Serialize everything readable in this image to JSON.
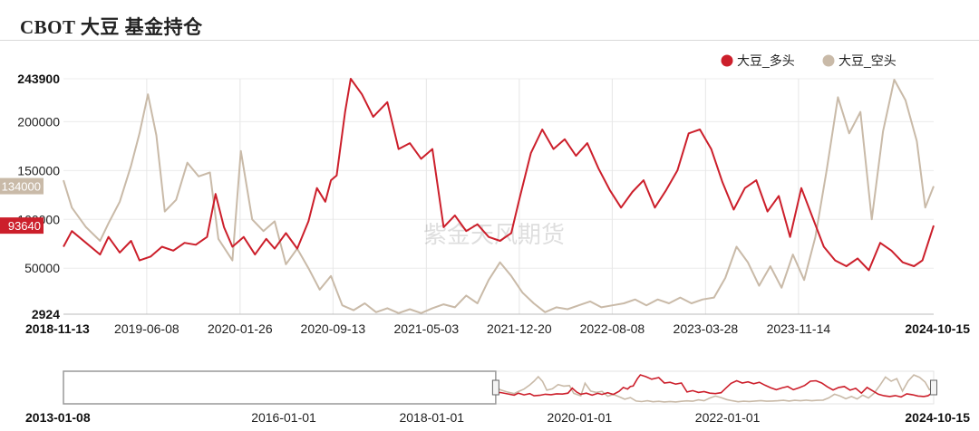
{
  "title": "CBOT 大豆 基金持仓",
  "watermark": "紫金天风期货",
  "chart_data": {
    "type": "line",
    "xlabel": "",
    "ylabel": "",
    "ylim": [
      2924,
      243900
    ],
    "y_ticks": [
      "243900",
      "200000",
      "150000",
      "100000",
      "50000",
      "2924"
    ],
    "x_range": [
      "2018-11-13",
      "2024-10-15"
    ],
    "x_ticks": [
      "2018-11-13",
      "2019-06-08",
      "2020-01-26",
      "2020-09-13",
      "2021-05-03",
      "2021-12-20",
      "2022-08-08",
      "2023-03-28",
      "2023-11-14",
      "2024-10-15"
    ],
    "grid": "vertical",
    "legend_position": "top-right",
    "series": [
      {
        "name": "大豆_多头",
        "color": "#cc1f2b",
        "last_value_label": "93640",
        "points": [
          [
            "2018-11-13",
            72000
          ],
          [
            "2018-12-04",
            88000
          ],
          [
            "2019-01-08",
            76000
          ],
          [
            "2019-02-12",
            64000
          ],
          [
            "2019-03-05",
            82000
          ],
          [
            "2019-04-02",
            66000
          ],
          [
            "2019-04-30",
            78000
          ],
          [
            "2019-05-21",
            58000
          ],
          [
            "2019-06-18",
            62000
          ],
          [
            "2019-07-16",
            72000
          ],
          [
            "2019-08-13",
            68000
          ],
          [
            "2019-09-10",
            76000
          ],
          [
            "2019-10-08",
            74000
          ],
          [
            "2019-11-05",
            82000
          ],
          [
            "2019-11-26",
            126000
          ],
          [
            "2019-12-17",
            92000
          ],
          [
            "2020-01-07",
            72000
          ],
          [
            "2020-02-04",
            82000
          ],
          [
            "2020-03-03",
            64000
          ],
          [
            "2020-03-31",
            80000
          ],
          [
            "2020-04-21",
            70000
          ],
          [
            "2020-05-19",
            86000
          ],
          [
            "2020-06-16",
            70000
          ],
          [
            "2020-07-14",
            98000
          ],
          [
            "2020-08-04",
            132000
          ],
          [
            "2020-08-25",
            118000
          ],
          [
            "2020-09-08",
            140000
          ],
          [
            "2020-09-22",
            145000
          ],
          [
            "2020-10-13",
            210000
          ],
          [
            "2020-10-27",
            243900
          ],
          [
            "2020-11-24",
            228000
          ],
          [
            "2020-12-22",
            205000
          ],
          [
            "2021-01-26",
            220000
          ],
          [
            "2021-02-23",
            172000
          ],
          [
            "2021-03-23",
            178000
          ],
          [
            "2021-04-20",
            162000
          ],
          [
            "2021-05-18",
            172000
          ],
          [
            "2021-06-15",
            92000
          ],
          [
            "2021-07-13",
            104000
          ],
          [
            "2021-08-10",
            88000
          ],
          [
            "2021-09-07",
            95000
          ],
          [
            "2021-10-05",
            82000
          ],
          [
            "2021-11-02",
            78000
          ],
          [
            "2021-11-30",
            86000
          ],
          [
            "2021-12-21",
            122000
          ],
          [
            "2022-01-18",
            168000
          ],
          [
            "2022-02-15",
            192000
          ],
          [
            "2022-03-15",
            172000
          ],
          [
            "2022-04-12",
            182000
          ],
          [
            "2022-05-10",
            165000
          ],
          [
            "2022-06-07",
            178000
          ],
          [
            "2022-07-05",
            152000
          ],
          [
            "2022-08-02",
            130000
          ],
          [
            "2022-08-30",
            112000
          ],
          [
            "2022-09-27",
            128000
          ],
          [
            "2022-10-25",
            140000
          ],
          [
            "2022-11-22",
            112000
          ],
          [
            "2022-12-20",
            130000
          ],
          [
            "2023-01-17",
            150000
          ],
          [
            "2023-02-14",
            188000
          ],
          [
            "2023-03-14",
            192000
          ],
          [
            "2023-04-11",
            172000
          ],
          [
            "2023-05-09",
            138000
          ],
          [
            "2023-06-06",
            110000
          ],
          [
            "2023-07-04",
            132000
          ],
          [
            "2023-08-01",
            140000
          ],
          [
            "2023-08-29",
            108000
          ],
          [
            "2023-09-26",
            124000
          ],
          [
            "2023-10-24",
            82000
          ],
          [
            "2023-11-21",
            132000
          ],
          [
            "2023-12-19",
            102000
          ],
          [
            "2024-01-16",
            72000
          ],
          [
            "2024-02-13",
            58000
          ],
          [
            "2024-03-12",
            52000
          ],
          [
            "2024-04-09",
            60000
          ],
          [
            "2024-05-07",
            48000
          ],
          [
            "2024-06-04",
            76000
          ],
          [
            "2024-07-02",
            68000
          ],
          [
            "2024-07-30",
            56000
          ],
          [
            "2024-08-27",
            52000
          ],
          [
            "2024-09-17",
            58000
          ],
          [
            "2024-10-15",
            93640
          ]
        ]
      },
      {
        "name": "大豆_空头",
        "color": "#c9baa8",
        "last_value_label": "134000",
        "points": [
          [
            "2018-11-13",
            140000
          ],
          [
            "2018-12-04",
            112000
          ],
          [
            "2019-01-08",
            92000
          ],
          [
            "2019-02-12",
            78000
          ],
          [
            "2019-03-05",
            96000
          ],
          [
            "2019-04-02",
            118000
          ],
          [
            "2019-04-30",
            155000
          ],
          [
            "2019-05-21",
            188000
          ],
          [
            "2019-06-11",
            228000
          ],
          [
            "2019-07-02",
            186000
          ],
          [
            "2019-07-23",
            108000
          ],
          [
            "2019-08-20",
            120000
          ],
          [
            "2019-09-17",
            158000
          ],
          [
            "2019-10-15",
            144000
          ],
          [
            "2019-11-12",
            148000
          ],
          [
            "2019-12-03",
            80000
          ],
          [
            "2020-01-07",
            58000
          ],
          [
            "2020-01-28",
            170000
          ],
          [
            "2020-02-25",
            100000
          ],
          [
            "2020-03-24",
            88000
          ],
          [
            "2020-04-21",
            98000
          ],
          [
            "2020-05-19",
            54000
          ],
          [
            "2020-06-16",
            70000
          ],
          [
            "2020-07-14",
            50000
          ],
          [
            "2020-08-11",
            28000
          ],
          [
            "2020-09-08",
            42000
          ],
          [
            "2020-10-06",
            12000
          ],
          [
            "2020-11-03",
            7000
          ],
          [
            "2020-12-01",
            14000
          ],
          [
            "2020-12-29",
            5000
          ],
          [
            "2021-01-26",
            9000
          ],
          [
            "2021-02-23",
            4000
          ],
          [
            "2021-03-23",
            8000
          ],
          [
            "2021-04-20",
            4000
          ],
          [
            "2021-05-18",
            9000
          ],
          [
            "2021-06-15",
            13000
          ],
          [
            "2021-07-13",
            10000
          ],
          [
            "2021-08-10",
            22000
          ],
          [
            "2021-09-07",
            14000
          ],
          [
            "2021-10-05",
            38000
          ],
          [
            "2021-11-02",
            56000
          ],
          [
            "2021-11-30",
            42000
          ],
          [
            "2021-12-28",
            25000
          ],
          [
            "2022-01-25",
            14000
          ],
          [
            "2022-02-22",
            5000
          ],
          [
            "2022-03-22",
            10000
          ],
          [
            "2022-04-19",
            8000
          ],
          [
            "2022-05-17",
            12000
          ],
          [
            "2022-06-14",
            16000
          ],
          [
            "2022-07-12",
            10000
          ],
          [
            "2022-08-09",
            12000
          ],
          [
            "2022-09-06",
            14000
          ],
          [
            "2022-10-04",
            18000
          ],
          [
            "2022-11-01",
            12000
          ],
          [
            "2022-11-29",
            18000
          ],
          [
            "2022-12-27",
            14000
          ],
          [
            "2023-01-24",
            20000
          ],
          [
            "2023-02-21",
            14000
          ],
          [
            "2023-03-21",
            18000
          ],
          [
            "2023-04-18",
            20000
          ],
          [
            "2023-05-16",
            40000
          ],
          [
            "2023-06-13",
            72000
          ],
          [
            "2023-07-11",
            56000
          ],
          [
            "2023-08-08",
            32000
          ],
          [
            "2023-09-05",
            52000
          ],
          [
            "2023-10-03",
            30000
          ],
          [
            "2023-10-31",
            64000
          ],
          [
            "2023-11-28",
            38000
          ],
          [
            "2023-12-26",
            82000
          ],
          [
            "2024-01-23",
            150000
          ],
          [
            "2024-02-20",
            225000
          ],
          [
            "2024-03-19",
            188000
          ],
          [
            "2024-04-16",
            210000
          ],
          [
            "2024-05-14",
            100000
          ],
          [
            "2024-06-11",
            190000
          ],
          [
            "2024-07-09",
            243000
          ],
          [
            "2024-08-06",
            222000
          ],
          [
            "2024-09-03",
            180000
          ],
          [
            "2024-09-24",
            112000
          ],
          [
            "2024-10-15",
            134000
          ]
        ]
      }
    ]
  },
  "navigator": {
    "x_ticks": [
      "2013-01-08",
      "2016-01-01",
      "2018-01-01",
      "2020-01-01",
      "2022-01-01",
      "2024-10-15"
    ],
    "full_range": [
      "2013-01-08",
      "2024-10-15"
    ],
    "selected_range": [
      "2018-11-13",
      "2024-10-15"
    ]
  }
}
